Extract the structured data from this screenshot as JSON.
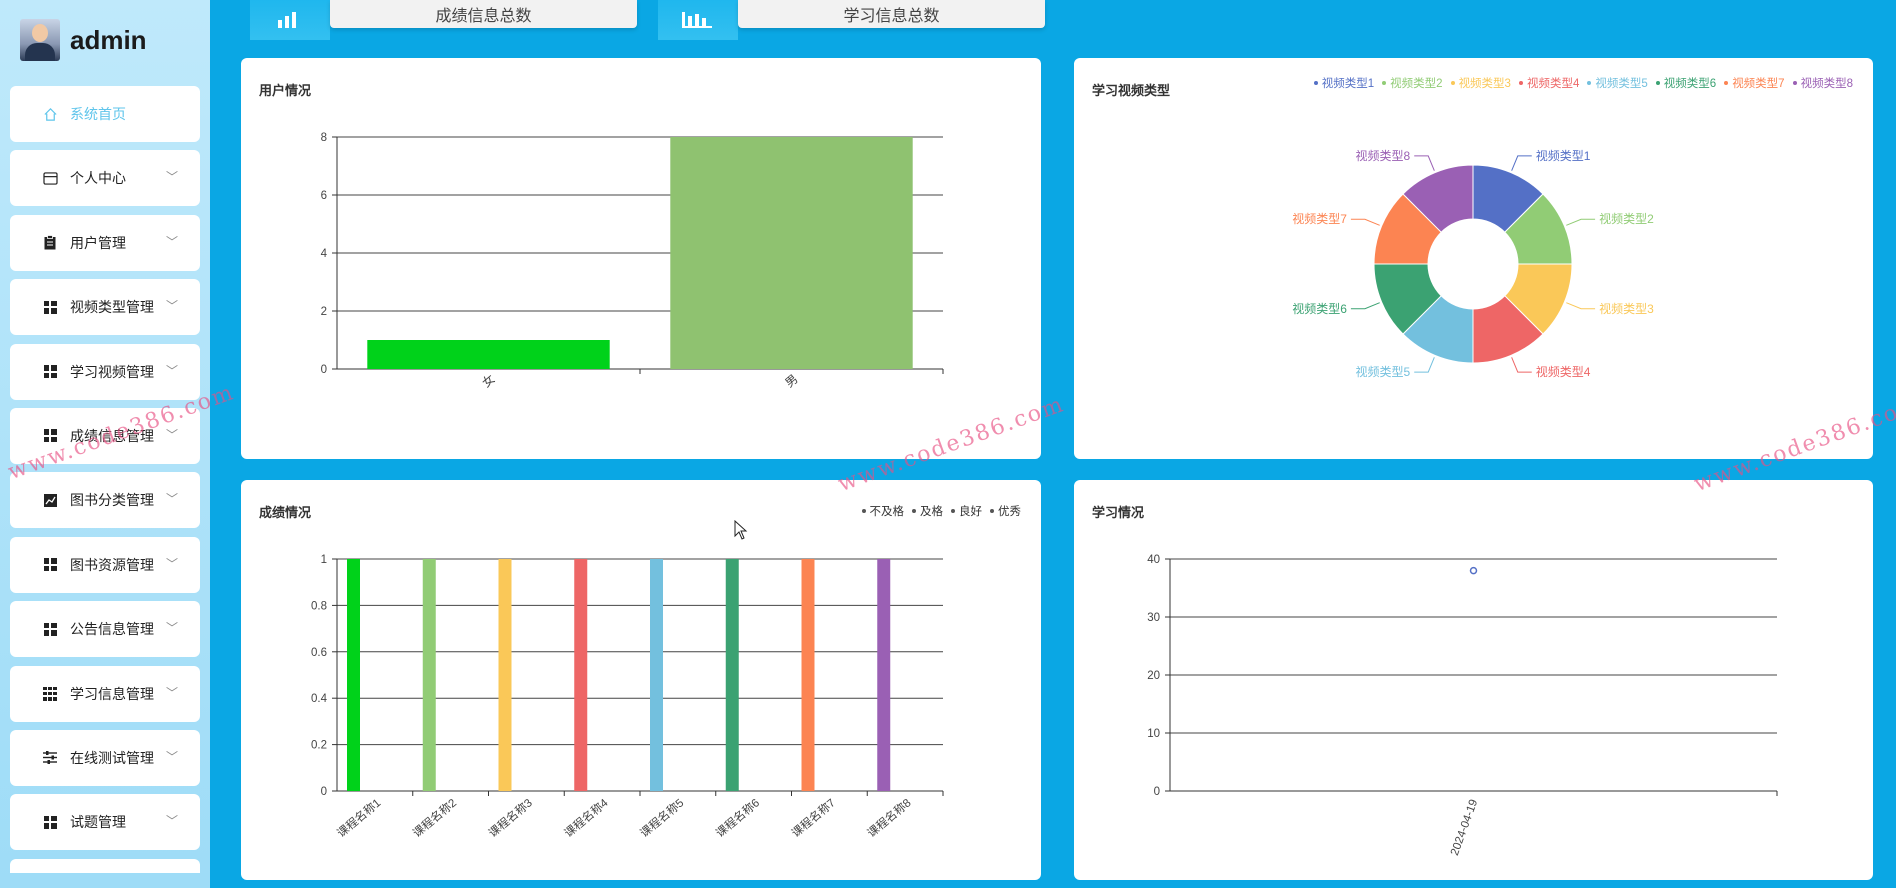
{
  "brand": {
    "name": "admin"
  },
  "sidebar": {
    "items": [
      {
        "label": "系统首页",
        "icon": "home-icon",
        "active": true
      },
      {
        "label": "个人中心",
        "icon": "card-icon"
      },
      {
        "label": "用户管理",
        "icon": "clipboard-icon"
      },
      {
        "label": "视频类型管理",
        "icon": "grid-icon"
      },
      {
        "label": "学习视频管理",
        "icon": "grid-icon"
      },
      {
        "label": "成绩信息管理",
        "icon": "grid-icon"
      },
      {
        "label": "图书分类管理",
        "icon": "chart-icon"
      },
      {
        "label": "图书资源管理",
        "icon": "grid-icon"
      },
      {
        "label": "公告信息管理",
        "icon": "grid-icon"
      },
      {
        "label": "学习信息管理",
        "icon": "grid9-icon"
      },
      {
        "label": "在线测试管理",
        "icon": "sliders-icon"
      },
      {
        "label": "试题管理",
        "icon": "grid-icon"
      }
    ]
  },
  "stats": [
    {
      "label": "成绩信息总数",
      "icon": "bar-chart-icon"
    },
    {
      "label": "学习信息总数",
      "icon": "bar-chart-icon"
    }
  ],
  "panels": {
    "users": {
      "title": "用户情况"
    },
    "video_types": {
      "title": "学习视频类型"
    },
    "scores": {
      "title": "成绩情况"
    },
    "study": {
      "title": "学习情况"
    }
  },
  "watermark": "www.code386.com",
  "chart_data": [
    {
      "type": "bar",
      "id": "users",
      "title": "用户情况",
      "categories": [
        "女",
        "男"
      ],
      "values": [
        1,
        8
      ],
      "colors": [
        "#00d21a",
        "#8fc270"
      ],
      "ylim": [
        0,
        8
      ],
      "yticks": [
        0,
        2,
        4,
        6,
        8
      ],
      "grid": true
    },
    {
      "type": "pie",
      "id": "video_types",
      "title": "学习视频类型",
      "donut": true,
      "labels": [
        "视频类型1",
        "视频类型2",
        "视频类型3",
        "视频类型4",
        "视频类型5",
        "视频类型6",
        "视频类型7",
        "视频类型8"
      ],
      "values": [
        1,
        1,
        1,
        1,
        1,
        1,
        1,
        1
      ],
      "colors": [
        "#5470c6",
        "#91cc75",
        "#fac858",
        "#ee6666",
        "#73c0de",
        "#3ba272",
        "#fc8452",
        "#9a60b4"
      ],
      "legend": "top-right"
    },
    {
      "type": "bar",
      "id": "scores",
      "title": "成绩情况",
      "categories": [
        "课程名称1",
        "课程名称2",
        "课程名称3",
        "课程名称4",
        "课程名称5",
        "课程名称6",
        "课程名称7",
        "课程名称8"
      ],
      "values": [
        1,
        1,
        1,
        1,
        1,
        1,
        1,
        1
      ],
      "colors": [
        "#00d21a",
        "#91cc75",
        "#fac858",
        "#ee6666",
        "#73c0de",
        "#3ba272",
        "#fc8452",
        "#9a60b4"
      ],
      "legend_entries": [
        "不及格",
        "及格",
        "良好",
        "优秀"
      ],
      "legend": "top-right",
      "ylim": [
        0,
        1
      ],
      "yticks": [
        0,
        0.2,
        0.4,
        0.6,
        0.8,
        1
      ],
      "grid": true
    },
    {
      "type": "scatter",
      "id": "study",
      "title": "学习情况",
      "categories": [
        "2024-04-19"
      ],
      "values": [
        38
      ],
      "color": "#5470c6",
      "ylim": [
        0,
        40
      ],
      "yticks": [
        0,
        10,
        20,
        30,
        40
      ],
      "grid": true
    }
  ]
}
